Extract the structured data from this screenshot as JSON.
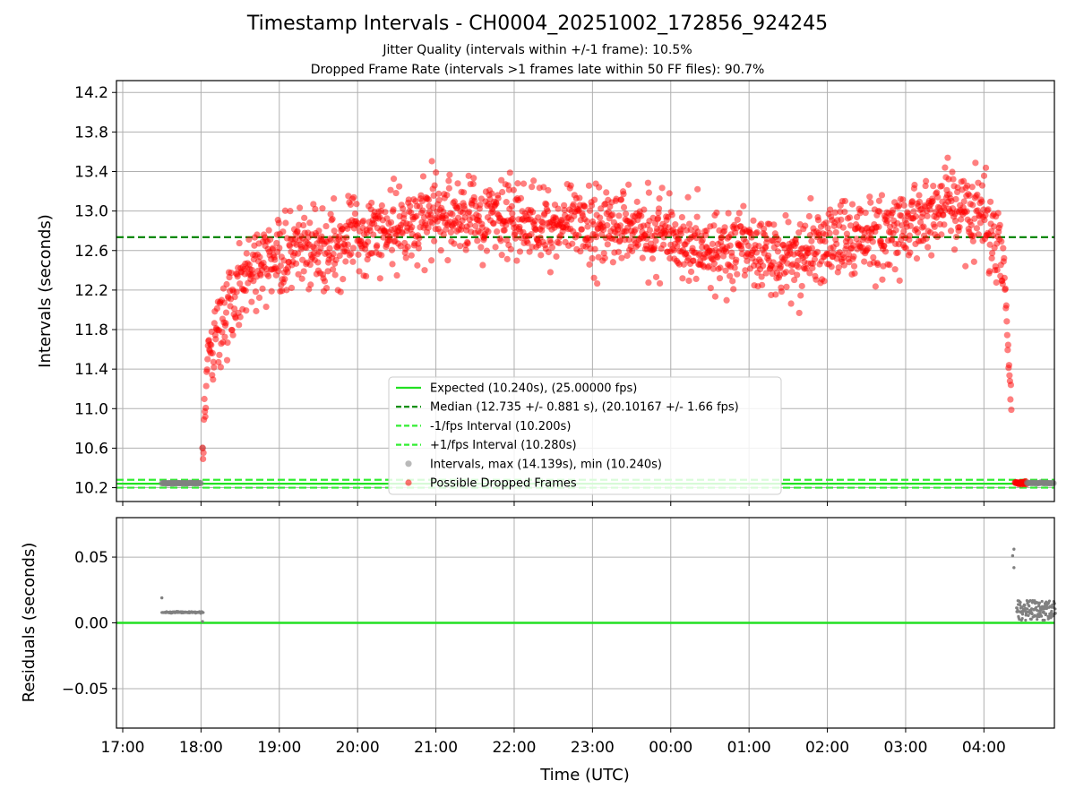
{
  "title": "Timestamp Intervals - CH0004_20251002_172856_924245",
  "subtitle1": "Jitter Quality (intervals within +/-1 frame): 10.5%",
  "subtitle2": "Dropped Frame Rate (intervals >1 frames late within 50 FF files): 90.7%",
  "colors": {
    "expected": "#22e022",
    "median": "#008800",
    "interval_band": "#33ee33",
    "intervals_gray": "#808080",
    "dropped_red": "#ff0000",
    "grid": "#b0b0b0"
  },
  "chart_data": [
    {
      "type": "scatter",
      "ylabel": "Intervals (seconds)",
      "ylim": [
        10.06,
        14.32
      ],
      "yticks": [
        "10.2",
        "10.6",
        "11.0",
        "11.4",
        "11.8",
        "12.2",
        "12.6",
        "13.0",
        "13.4",
        "13.8",
        "14.2"
      ],
      "grid": true,
      "legend_position": "lower center",
      "hlines": [
        {
          "name": "Expected (10.240s), (25.00000 fps)",
          "y": 10.24,
          "style": "solid"
        },
        {
          "name": "Median (12.735 +/- 0.881 s), (20.10167 +/- 1.66 fps)",
          "y": 12.735,
          "style": "dashed"
        },
        {
          "name": "-1/fps Interval (10.200s)",
          "y": 10.2,
          "style": "dashed"
        },
        {
          "name": "+1/fps Interval (10.280s)",
          "y": 10.28,
          "style": "dashed"
        }
      ],
      "series": [
        {
          "name": "Intervals, max (14.139s), min (10.240s)",
          "kind": "gray"
        },
        {
          "name": "Possible Dropped Frames",
          "kind": "red"
        }
      ],
      "trend_hourly": [
        {
          "t": "17:30",
          "y": 10.24
        },
        {
          "t": "18:00",
          "y": 10.26
        },
        {
          "t": "18:05",
          "y": 11.5
        },
        {
          "t": "18:30",
          "y": 12.3
        },
        {
          "t": "19:00",
          "y": 12.55
        },
        {
          "t": "19:30",
          "y": 12.6
        },
        {
          "t": "20:00",
          "y": 12.75
        },
        {
          "t": "20:30",
          "y": 12.85
        },
        {
          "t": "21:00",
          "y": 12.95
        },
        {
          "t": "21:30",
          "y": 12.95
        },
        {
          "t": "22:00",
          "y": 12.9
        },
        {
          "t": "22:30",
          "y": 12.85
        },
        {
          "t": "23:00",
          "y": 12.85
        },
        {
          "t": "23:30",
          "y": 12.85
        },
        {
          "t": "00:00",
          "y": 12.75
        },
        {
          "t": "00:30",
          "y": 12.6
        },
        {
          "t": "01:00",
          "y": 12.6
        },
        {
          "t": "01:30",
          "y": 12.55
        },
        {
          "t": "02:00",
          "y": 12.65
        },
        {
          "t": "02:30",
          "y": 12.75
        },
        {
          "t": "03:00",
          "y": 12.8
        },
        {
          "t": "03:30",
          "y": 13.1
        },
        {
          "t": "04:00",
          "y": 12.95
        },
        {
          "t": "04:15",
          "y": 12.6
        },
        {
          "t": "04:20",
          "y": 11.2
        },
        {
          "t": "04:25",
          "y": 10.25
        },
        {
          "t": "04:55",
          "y": 10.25
        }
      ]
    },
    {
      "type": "scatter",
      "xlabel": "Time (UTC)",
      "ylabel": "Residuals (seconds)",
      "ylim": [
        -0.08,
        0.08
      ],
      "yticks": [
        "−0.05",
        "0.00",
        "0.05"
      ],
      "xticks": [
        "17:00",
        "18:00",
        "19:00",
        "20:00",
        "21:00",
        "22:00",
        "23:00",
        "00:00",
        "01:00",
        "02:00",
        "03:00",
        "04:00"
      ],
      "grid": true,
      "zero_line": 0.0,
      "clusters": [
        {
          "from": "17:30",
          "to": "18:02",
          "y": 0.008
        },
        {
          "from": "04:25",
          "to": "04:55",
          "y_range": [
            0.002,
            0.017
          ]
        }
      ],
      "outliers": [
        {
          "t": "17:30",
          "y": 0.019
        },
        {
          "t": "04:23",
          "y": 0.056
        },
        {
          "t": "04:22",
          "y": 0.051
        },
        {
          "t": "04:23",
          "y": 0.042
        }
      ]
    }
  ]
}
